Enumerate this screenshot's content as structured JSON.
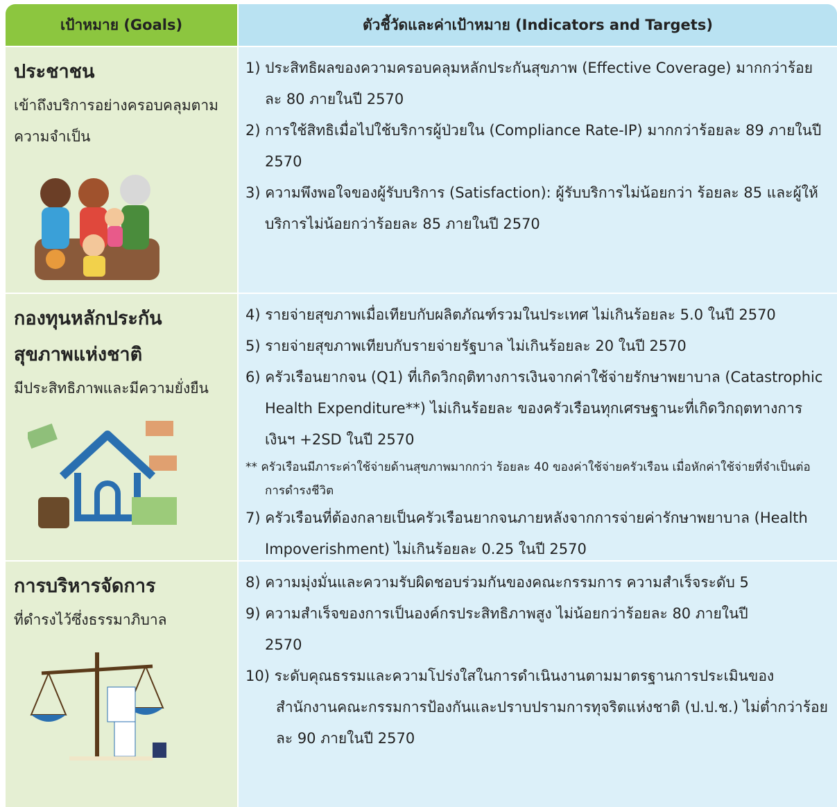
{
  "header": {
    "goals": "เป้าหมาย (Goals)",
    "indicators": "ตัวชี้วัดและค่าเป้าหมาย (Indicators and Targets)"
  },
  "rows": [
    {
      "goal": {
        "title": "ประชาชน",
        "subtitle": "เข้าถึงบริการอย่างครอบคลุมตามความจำเป็น"
      },
      "items": [
        "1) ประสิทธิผลของความครอบคลุมหลักประกันสุขภาพ (Effective Coverage) มากกว่าร้อยละ 80 ภายในปี 2570",
        "2) การใช้สิทธิเมื่อไปใช้บริการผู้ป่วยใน (Compliance Rate-IP) มากกว่าร้อยละ 89 ภายในปี 2570",
        "3) ความพึงพอใจของผู้รับบริการ (Satisfaction): ผู้รับบริการไม่น้อยกว่า ร้อยละ 85 และผู้ให้บริการไม่น้อยกว่าร้อยละ 85 ภายในปี 2570"
      ]
    },
    {
      "goal": {
        "title": "กองทุนหลักประกันสุขภาพแห่งชาติ",
        "subtitle": "มีประสิทธิภาพและมีความยั่งยืน"
      },
      "items": [
        "4) รายจ่ายสุขภาพเมื่อเทียบกับผลิตภัณฑ์รวมในประเทศ ไม่เกินร้อยละ 5.0 ในปี 2570",
        "5) รายจ่ายสุขภาพเทียบกับรายจ่ายรัฐบาล ไม่เกินร้อยละ 20 ในปี 2570",
        "6) ครัวเรือนยากจน (Q1) ที่เกิดวิกฤติทางการเงินจากค่าใช้จ่ายรักษาพยาบาล (Catastrophic Health Expenditure**) ไม่เกินร้อยละ ของครัวเรือนทุกเศรษฐานะที่เกิดวิกฤตทางการเงินฯ +2SD ในปี 2570",
        "7) ครัวเรือนที่ต้องกลายเป็นครัวเรือนยากจนภายหลังจากการจ่ายค่ารักษาพยาบาล (Health Impoverishment) ไม่เกินร้อยละ 0.25 ในปี 2570"
      ],
      "footnote": "** ครัวเรือนมีภาระค่าใช้จ่ายด้านสุขภาพมากกว่า ร้อยละ 40 ของค่าใช้จ่ายครัวเรือน เมื่อหักค่าใช้จ่ายที่จำเป็นต่อการดำรงชีวิต"
    },
    {
      "goal": {
        "title": "การบริหารจัดการ",
        "subtitle": "ที่ดำรงไว้ซึ่งธรรมาภิบาล"
      },
      "items": [
        "8) ความมุ่งมั่นและความรับผิดชอบร่วมกันของคณะกรรมการ ความสำเร็จระดับ 5",
        "9) ความสำเร็จของการเป็นองค์กรประสิทธิภาพสูง ไม่น้อยกว่าร้อยละ 80 ภายในปี 2570",
        "10) ระดับคุณธรรมและความโปร่งใสในการดำเนินงานตามมาตรฐานการประเมินของสำนักงานคณะกรรมการป้องกันและปราบปรามการทุจริตแห่งชาติ (ป.ป.ช.) ไม่ต่ำกว่าร้อยละ 90 ภายในปี 2570"
      ]
    }
  ]
}
